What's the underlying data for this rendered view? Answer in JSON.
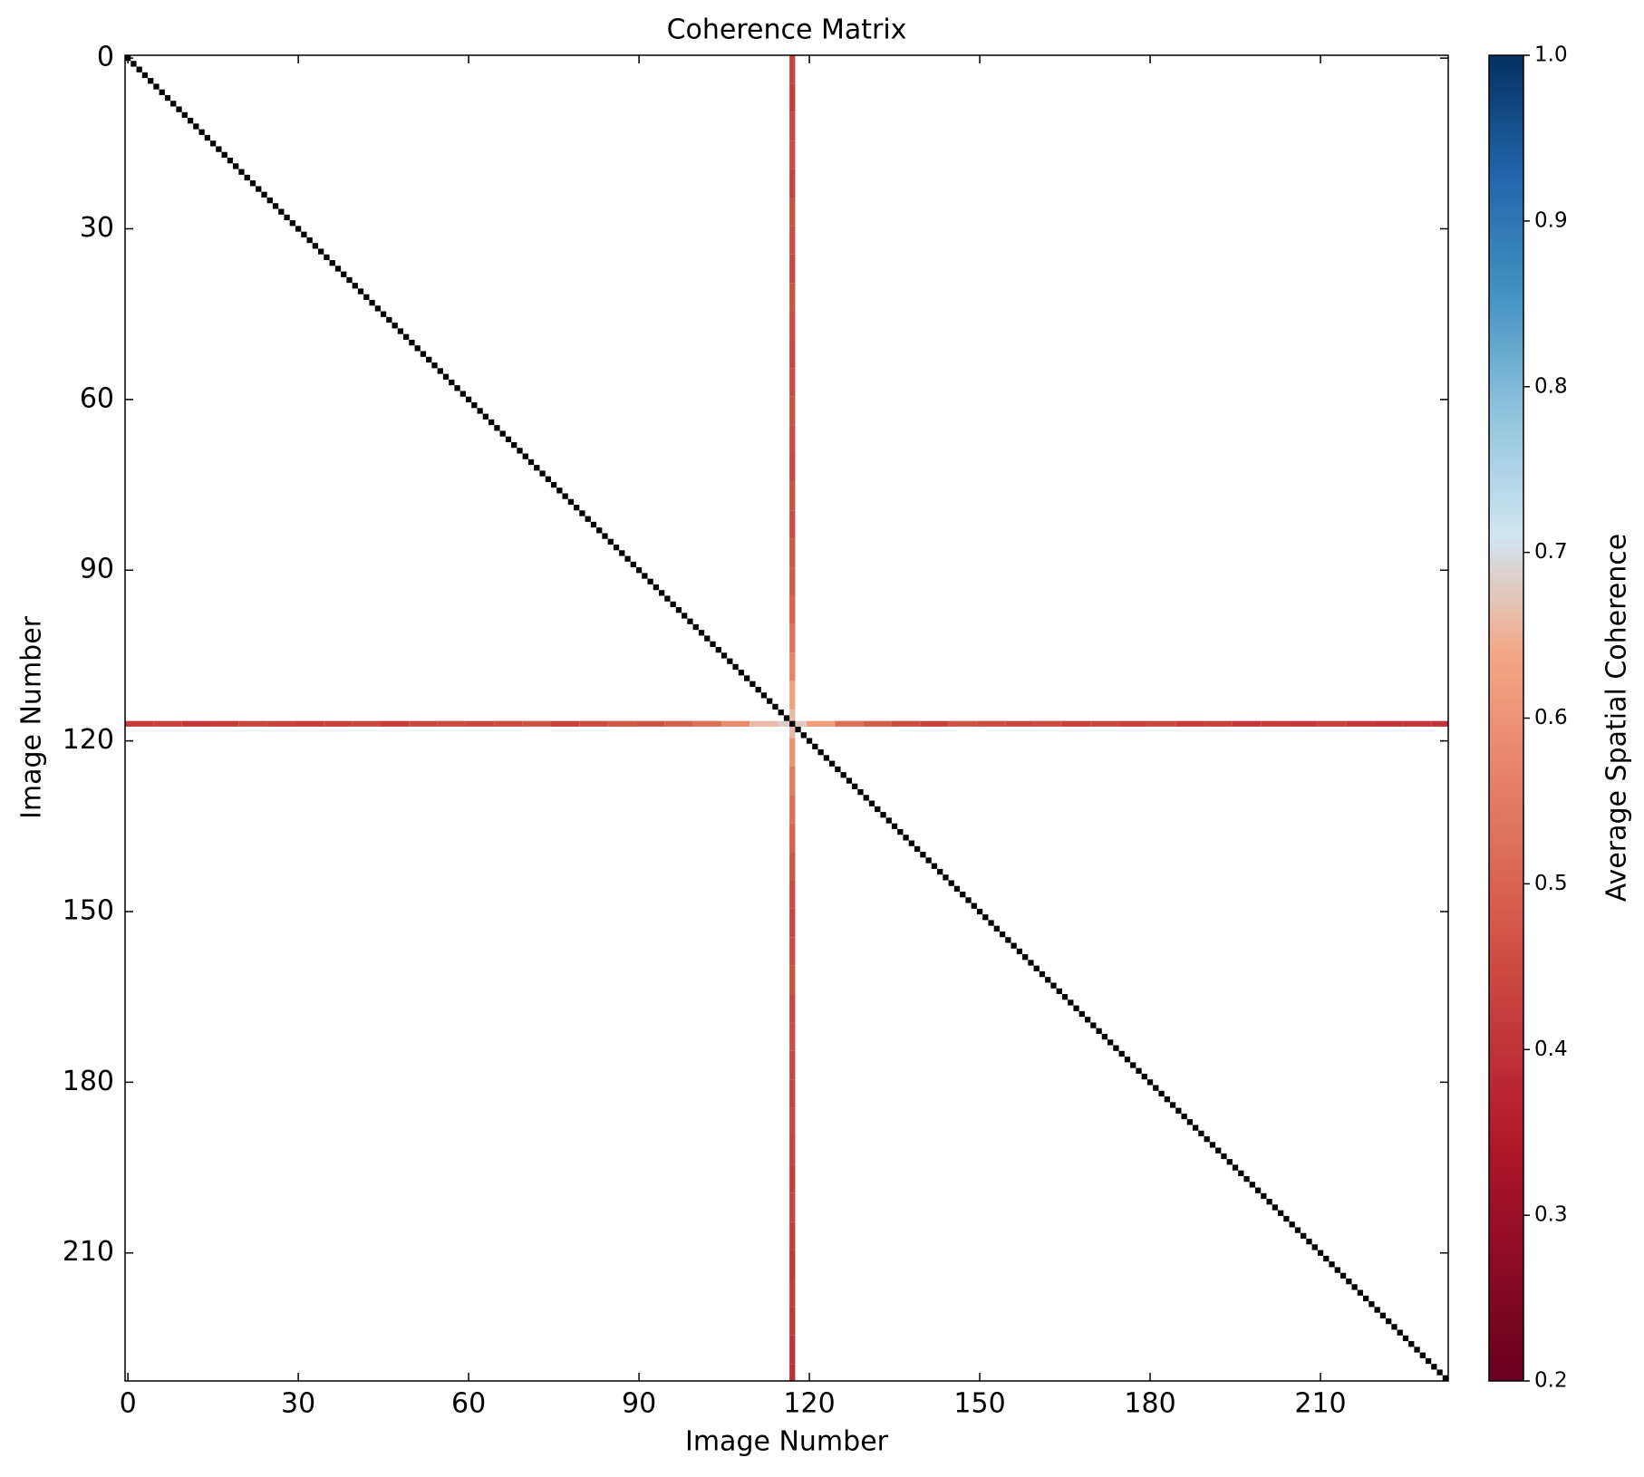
{
  "chart_data": {
    "type": "heatmap",
    "title": "Coherence Matrix",
    "x_label": "Image Number",
    "y_label": "Image Number",
    "xlim": [
      -0.5,
      232.5
    ],
    "ylim": [
      -0.5,
      232.5
    ],
    "invert_y": true,
    "xticks": [
      0,
      30,
      60,
      90,
      120,
      150,
      180,
      210
    ],
    "yticks": [
      0,
      30,
      60,
      90,
      120,
      150,
      180,
      210
    ],
    "background_color": "#ffffff",
    "diagonal_color": "#000000",
    "cross_index": 117,
    "row_x": [
      0,
      5,
      10,
      15,
      20,
      25,
      30,
      35,
      40,
      45,
      50,
      55,
      60,
      65,
      70,
      75,
      80,
      85,
      90,
      95,
      100,
      105,
      110,
      115,
      120,
      125,
      130,
      135,
      140,
      145,
      150,
      155,
      160,
      165,
      170,
      175,
      180,
      185,
      190,
      195,
      200,
      205,
      210,
      215,
      220,
      225,
      230
    ],
    "row_values": [
      0.42,
      0.43,
      0.41,
      0.42,
      0.44,
      0.43,
      0.42,
      0.43,
      0.44,
      0.42,
      0.44,
      0.45,
      0.44,
      0.45,
      0.46,
      0.43,
      0.45,
      0.47,
      0.46,
      0.49,
      0.52,
      0.58,
      0.66,
      0.68,
      0.62,
      0.52,
      0.48,
      0.45,
      0.43,
      0.46,
      0.45,
      0.44,
      0.45,
      0.43,
      0.44,
      0.43,
      0.44,
      0.42,
      0.43,
      0.41,
      0.42,
      0.41,
      0.43,
      0.41,
      0.4,
      0.41,
      0.4
    ],
    "column_values": [
      0.43,
      0.42,
      0.44,
      0.45,
      0.43,
      0.46,
      0.45,
      0.44,
      0.46,
      0.45,
      0.44,
      0.45,
      0.46,
      0.45,
      0.44,
      0.46,
      0.45,
      0.47,
      0.48,
      0.5,
      0.53,
      0.57,
      0.63,
      0.66,
      0.6,
      0.55,
      0.52,
      0.5,
      0.47,
      0.45,
      0.44,
      0.45,
      0.46,
      0.44,
      0.45,
      0.44,
      0.43,
      0.44,
      0.43,
      0.42,
      0.43,
      0.42,
      0.41,
      0.42,
      0.41,
      0.4,
      0.39
    ],
    "colorbar": {
      "label": "Average Spatial Coherence",
      "clim": [
        0.2,
        1.0
      ],
      "ticks": [
        0.2,
        0.3,
        0.4,
        0.5,
        0.6,
        0.7,
        0.8,
        0.9,
        {
          "value": 1,
          "label": "1.0"
        }
      ],
      "colors": [
        "#67001f",
        "#8c0c25",
        "#b2182b",
        "#c43c3c",
        "#d6604d",
        "#e58267",
        "#f4a582",
        "#d1e5f0",
        "#92c5de",
        "#4393c3",
        "#2166ac",
        "#053061"
      ]
    }
  }
}
